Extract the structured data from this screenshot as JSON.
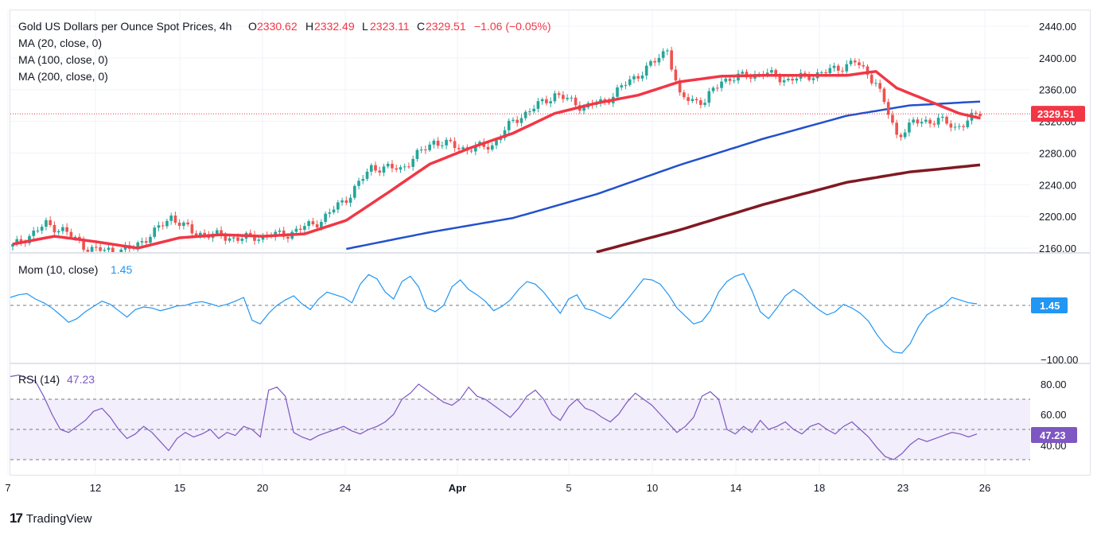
{
  "header": {
    "title": "Gold US Dollars per Ounce Spot Prices, 4h",
    "open_label": "O",
    "open": "2330.62",
    "high_label": "H",
    "high": "2332.49",
    "low_label": "L",
    "low": "2323.11",
    "close_label": "C",
    "close": "2329.51",
    "change": "−1.06 (−0.05%)"
  },
  "legends": {
    "ma20": "MA (20, close, 0)",
    "ma100": "MA (100, close, 0)",
    "ma200": "MA (200, close, 0)",
    "mom": "Mom (10, close)",
    "mom_value": "1.45",
    "rsi": "RSI (14)",
    "rsi_value": "47.23"
  },
  "price_tag": "2329.51",
  "mom_tag": "1.45",
  "rsi_tag": "47.23",
  "footer": {
    "brand": "TradingView",
    "logo": "17"
  },
  "colors": {
    "up": "#26a69a",
    "down": "#ef5350",
    "ma20": "#f23645",
    "ma100": "#2251cc",
    "ma200": "#801922",
    "mom": "#2196f3",
    "rsi": "#7e57c2",
    "rsi_band": "#f2eefb"
  },
  "chart_data": [
    {
      "type": "candlestick",
      "timeframe": "4h",
      "title": "Gold US Dollars per Ounce Spot Prices, 4h",
      "ylim": [
        2155,
        2445
      ],
      "yticks": [
        "2440.00",
        "2400.00",
        "2360.00",
        "2320.00",
        "2280.00",
        "2240.00",
        "2200.00",
        "2160.00"
      ],
      "xticks": [
        "7",
        "12",
        "15",
        "20",
        "24",
        "Apr",
        "5",
        "10",
        "14",
        "18",
        "23",
        "26"
      ],
      "last_price": 2329.51,
      "close_path": [
        [
          0,
          2162
        ],
        [
          8,
          2190
        ],
        [
          12,
          2183
        ],
        [
          17,
          2163
        ],
        [
          20,
          2157
        ],
        [
          28,
          2158
        ],
        [
          34,
          2180
        ],
        [
          38,
          2200
        ],
        [
          43,
          2180
        ],
        [
          54,
          2172
        ],
        [
          66,
          2178
        ],
        [
          74,
          2195
        ],
        [
          81,
          2228
        ],
        [
          86,
          2262
        ],
        [
          93,
          2260
        ],
        [
          101,
          2295
        ],
        [
          109,
          2285
        ],
        [
          115,
          2290
        ],
        [
          120,
          2320
        ],
        [
          130,
          2354
        ],
        [
          137,
          2338
        ],
        [
          142,
          2345
        ],
        [
          146,
          2363
        ],
        [
          154,
          2395
        ],
        [
          157,
          2412
        ],
        [
          160,
          2350
        ],
        [
          166,
          2345
        ],
        [
          170,
          2372
        ],
        [
          180,
          2381
        ],
        [
          186,
          2372
        ],
        [
          195,
          2382
        ],
        [
          202,
          2395
        ],
        [
          207,
          2370
        ],
        [
          212,
          2302
        ],
        [
          216,
          2318
        ],
        [
          222,
          2322
        ],
        [
          226,
          2312
        ],
        [
          232,
          2330
        ]
      ],
      "series": [
        {
          "name": "MA (20, close, 0)",
          "path": [
            [
              0,
              2165
            ],
            [
              10,
              2175
            ],
            [
              20,
              2168
            ],
            [
              30,
              2160
            ],
            [
              40,
              2173
            ],
            [
              50,
              2177
            ],
            [
              60,
              2175
            ],
            [
              70,
              2178
            ],
            [
              80,
              2195
            ],
            [
              90,
              2230
            ],
            [
              100,
              2266
            ],
            [
              110,
              2287
            ],
            [
              120,
              2305
            ],
            [
              130,
              2330
            ],
            [
              140,
              2343
            ],
            [
              150,
              2353
            ],
            [
              160,
              2370
            ],
            [
              170,
              2377
            ],
            [
              180,
              2378
            ],
            [
              190,
              2378
            ],
            [
              200,
              2378
            ],
            [
              207,
              2383
            ],
            [
              212,
              2362
            ],
            [
              220,
              2345
            ],
            [
              227,
              2330
            ],
            [
              232,
              2324
            ]
          ]
        },
        {
          "name": "MA (100, close, 0)",
          "path": [
            [
              80,
              2159
            ],
            [
              100,
              2180
            ],
            [
              120,
              2198
            ],
            [
              140,
              2228
            ],
            [
              160,
              2265
            ],
            [
              180,
              2298
            ],
            [
              200,
              2327
            ],
            [
              215,
              2340
            ],
            [
              232,
              2345
            ]
          ]
        },
        {
          "name": "MA (200, close, 0)",
          "path": [
            [
              140,
              2155
            ],
            [
              160,
              2183
            ],
            [
              180,
              2215
            ],
            [
              200,
              2243
            ],
            [
              215,
              2256
            ],
            [
              232,
              2265
            ]
          ]
        }
      ]
    },
    {
      "type": "line",
      "title": "Mom (10, close)",
      "last_value": 1.45,
      "yticks": [
        "−100.00"
      ],
      "series": [
        {
          "name": "Mom (10, close)",
          "values": [
            15,
            20,
            22,
            12,
            5,
            -5,
            -18,
            -32,
            -25,
            -12,
            -2,
            8,
            2,
            -10,
            -22,
            -8,
            -3,
            -5,
            -10,
            -6,
            -1,
            0,
            5,
            7,
            3,
            -2,
            2,
            8,
            15,
            -28,
            -35,
            -15,
            0,
            10,
            18,
            3,
            -8,
            12,
            25,
            20,
            15,
            5,
            40,
            58,
            50,
            25,
            12,
            45,
            55,
            35,
            -5,
            -12,
            0,
            35,
            48,
            30,
            20,
            8,
            -10,
            -2,
            10,
            30,
            45,
            40,
            25,
            5,
            -15,
            12,
            20,
            -6,
            -10,
            -18,
            -25,
            -8,
            10,
            30,
            50,
            48,
            40,
            20,
            -5,
            -20,
            -35,
            -30,
            -10,
            25,
            45,
            55,
            60,
            28,
            -12,
            -25,
            -5,
            18,
            30,
            20,
            5,
            -8,
            -18,
            -12,
            2,
            -5,
            -15,
            -30,
            -55,
            -75,
            -88,
            -90,
            -72,
            -40,
            -18,
            -8,
            0,
            15,
            10,
            5,
            3
          ]
        }
      ]
    },
    {
      "type": "line",
      "title": "RSI (14)",
      "last_value": 47.23,
      "ylim": [
        28,
        85
      ],
      "yticks": [
        "80.00",
        "60.00",
        "40.00"
      ],
      "bands": [
        70,
        50,
        30
      ],
      "series": [
        {
          "name": "RSI (14)",
          "values": [
            85,
            86,
            84,
            82,
            72,
            60,
            50,
            48,
            52,
            56,
            62,
            64,
            58,
            50,
            44,
            47,
            52,
            48,
            42,
            36,
            44,
            48,
            45,
            47,
            50,
            44,
            48,
            46,
            52,
            50,
            45,
            76,
            78,
            72,
            48,
            45,
            43,
            46,
            48,
            50,
            52,
            49,
            47,
            50,
            52,
            55,
            60,
            70,
            74,
            80,
            76,
            72,
            68,
            66,
            70,
            78,
            72,
            70,
            66,
            62,
            58,
            64,
            72,
            76,
            70,
            60,
            56,
            65,
            70,
            64,
            62,
            58,
            55,
            60,
            68,
            74,
            70,
            66,
            60,
            54,
            48,
            52,
            58,
            72,
            75,
            70,
            50,
            47,
            52,
            48,
            56,
            50,
            52,
            55,
            50,
            47,
            52,
            54,
            50,
            47,
            52,
            55,
            50,
            45,
            38,
            32,
            30,
            34,
            40,
            44,
            42,
            44,
            46,
            48,
            47,
            45,
            47
          ]
        }
      ]
    }
  ]
}
